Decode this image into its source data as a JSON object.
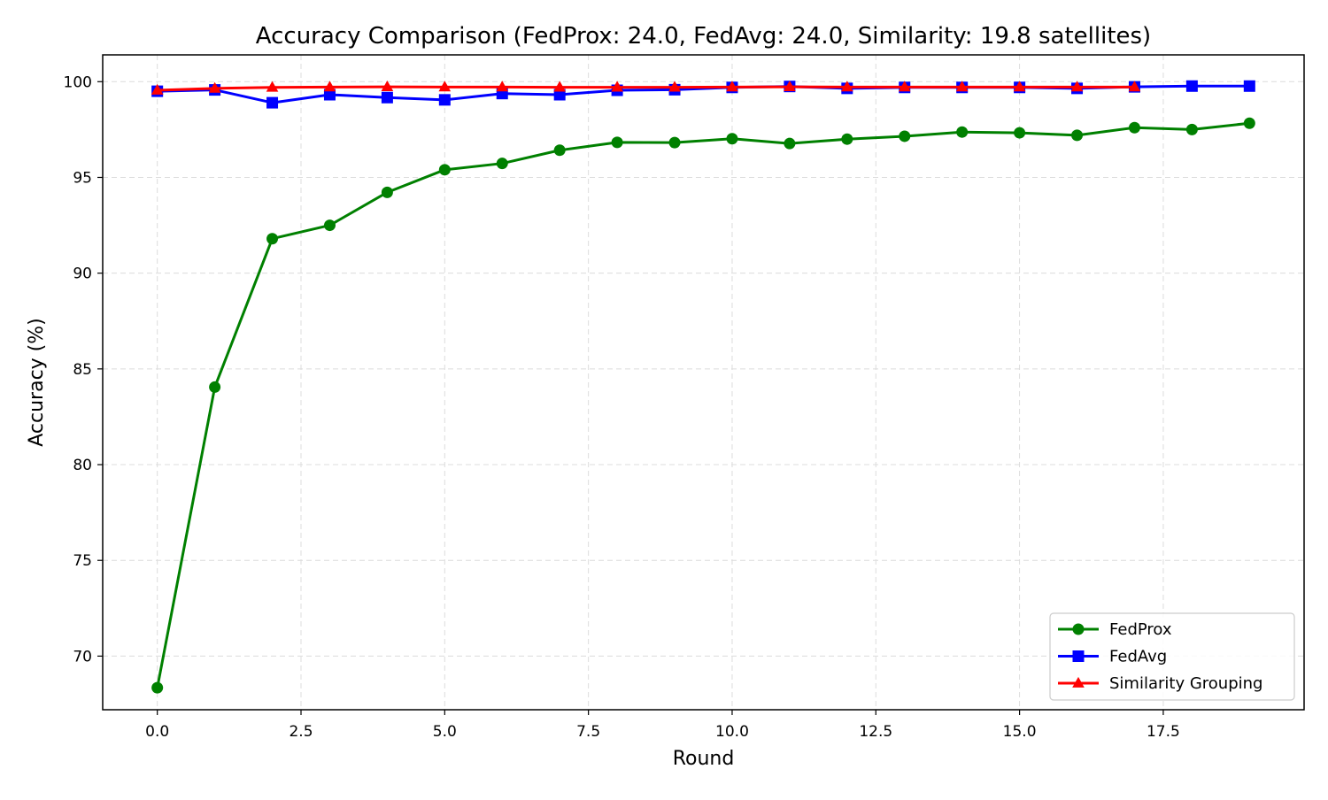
{
  "chart_data": {
    "type": "line",
    "title": "Accuracy Comparison (FedProx: 24.0, FedAvg: 24.0, Similarity: 19.8 satellites)",
    "xlabel": "Round",
    "ylabel": "Accuracy (%)",
    "xlim": [
      -0.95,
      19.95
    ],
    "ylim": [
      67.2,
      101.4
    ],
    "xticks": [
      0.0,
      2.5,
      5.0,
      7.5,
      10.0,
      12.5,
      15.0,
      17.5
    ],
    "xtick_labels": [
      "0.0",
      "2.5",
      "5.0",
      "7.5",
      "10.0",
      "12.5",
      "15.0",
      "17.5"
    ],
    "yticks": [
      70,
      75,
      80,
      85,
      90,
      95,
      100
    ],
    "ytick_labels": [
      "70",
      "75",
      "80",
      "85",
      "90",
      "95",
      "100"
    ],
    "grid": true,
    "legend_position": "lower-right",
    "series": [
      {
        "name": "FedProx",
        "color": "#008000",
        "marker": "circle",
        "x": [
          0,
          1,
          2,
          3,
          4,
          5,
          6,
          7,
          8,
          9,
          10,
          11,
          12,
          13,
          14,
          15,
          16,
          17,
          18,
          19
        ],
        "y": [
          68.35,
          84.05,
          91.8,
          92.5,
          94.22,
          95.4,
          95.73,
          96.42,
          96.83,
          96.82,
          97.02,
          96.77,
          97.0,
          97.15,
          97.37,
          97.33,
          97.2,
          97.6,
          97.5,
          97.83
        ]
      },
      {
        "name": "FedAvg",
        "color": "#0000ff",
        "marker": "square",
        "x": [
          0,
          1,
          2,
          3,
          4,
          5,
          6,
          7,
          8,
          9,
          10,
          11,
          12,
          13,
          14,
          15,
          16,
          17,
          18,
          19
        ],
        "y": [
          99.5,
          99.57,
          98.9,
          99.32,
          99.17,
          99.05,
          99.38,
          99.32,
          99.55,
          99.58,
          99.7,
          99.75,
          99.65,
          99.7,
          99.7,
          99.7,
          99.65,
          99.73,
          99.77,
          99.77
        ]
      },
      {
        "name": "Similarity Grouping",
        "color": "#ff0000",
        "marker": "triangle",
        "x": [
          0,
          1,
          2,
          3,
          4,
          5,
          6,
          7,
          8,
          9,
          10,
          11,
          12,
          13,
          14,
          15,
          16,
          17
        ],
        "y": [
          99.55,
          99.65,
          99.7,
          99.72,
          99.73,
          99.72,
          99.72,
          99.71,
          99.71,
          99.71,
          99.72,
          99.73,
          99.72,
          99.72,
          99.72,
          99.72,
          99.72,
          99.72
        ]
      }
    ]
  }
}
